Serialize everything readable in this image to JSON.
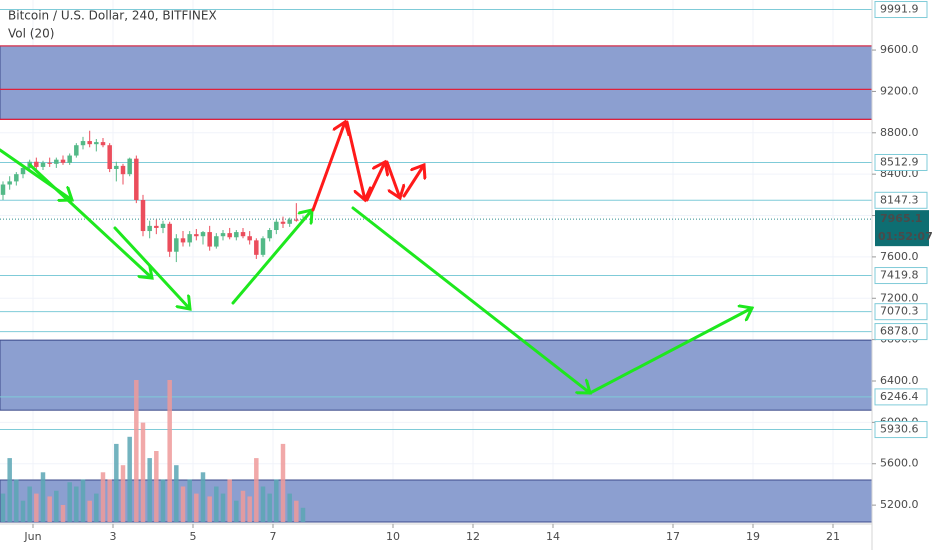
{
  "chart_data": {
    "type": "candlestick",
    "title": "Bitcoin / U.S. Dollar, 240, BITFINEX",
    "volume_title": "Vol (20)",
    "xlim": [
      0.175,
      21.975
    ],
    "xticks": [
      {
        "value": 1,
        "label": "Jun"
      },
      3,
      5,
      7,
      10,
      12,
      14,
      17,
      19,
      21
    ],
    "ylim": [
      4766,
      10084
    ],
    "yticks": [
      {
        "value": 9600,
        "label": "9600.0"
      },
      {
        "value": 9200,
        "label": "9200.0"
      },
      {
        "value": 8800,
        "label": "8800.0"
      },
      {
        "value": 8400,
        "label": "8400.0"
      },
      {
        "value": 8000,
        "label": "8000.0"
      },
      {
        "value": 7600,
        "label": "7600.0"
      },
      {
        "value": 7200,
        "label": "7200.0"
      },
      {
        "value": 6800,
        "label": "6800.0"
      },
      {
        "value": 6400,
        "label": "6400.0"
      },
      {
        "value": 6000,
        "label": "6000.0"
      },
      {
        "value": 5600,
        "label": "5600.0"
      },
      {
        "value": 5200,
        "label": "5200.0"
      }
    ],
    "grid": true,
    "up_color": "#53b987",
    "down_color": "#eb4d5c",
    "volume_up_color": "#5aa6b4",
    "volume_down_color": "#ef9a9a",
    "vlim": [
      0,
      100
    ],
    "x": [
      0.25,
      0.417,
      0.583,
      0.75,
      0.917,
      1.083,
      1.25,
      1.417,
      1.583,
      1.75,
      1.917,
      2.083,
      2.25,
      2.417,
      2.583,
      2.75,
      2.917,
      3.083,
      3.25,
      3.417,
      3.583,
      3.75,
      3.917,
      4.083,
      4.25,
      4.417,
      4.583,
      4.75,
      4.917,
      5.083,
      5.25,
      5.417,
      5.583,
      5.75,
      5.917,
      6.083,
      6.25,
      6.417,
      6.583,
      6.75,
      6.917,
      7.083,
      7.25,
      7.417,
      7.583,
      7.75
    ],
    "candles": [
      [
        8200,
        8330,
        8150,
        8300
      ],
      [
        8300,
        8380,
        8250,
        8330
      ],
      [
        8330,
        8420,
        8290,
        8400
      ],
      [
        8400,
        8480,
        8360,
        8460
      ],
      [
        8460,
        8540,
        8420,
        8520
      ],
      [
        8520,
        8560,
        8440,
        8470
      ],
      [
        8470,
        8530,
        8440,
        8510
      ],
      [
        8510,
        8560,
        8470,
        8500
      ],
      [
        8500,
        8560,
        8460,
        8540
      ],
      [
        8540,
        8580,
        8490,
        8510
      ],
      [
        8510,
        8600,
        8490,
        8580
      ],
      [
        8580,
        8700,
        8560,
        8680
      ],
      [
        8680,
        8760,
        8640,
        8720
      ],
      [
        8720,
        8820,
        8660,
        8690
      ],
      [
        8690,
        8740,
        8620,
        8710
      ],
      [
        8710,
        8750,
        8660,
        8680
      ],
      [
        8680,
        8700,
        8420,
        8450
      ],
      [
        8450,
        8520,
        8330,
        8480
      ],
      [
        8480,
        8500,
        8300,
        8400
      ],
      [
        8400,
        8560,
        8380,
        8550
      ],
      [
        8550,
        8580,
        8120,
        8150
      ],
      [
        8150,
        8200,
        7800,
        7850
      ],
      [
        7850,
        7950,
        7780,
        7900
      ],
      [
        7900,
        7960,
        7820,
        7880
      ],
      [
        7880,
        7950,
        7830,
        7920
      ],
      [
        7920,
        7940,
        7600,
        7650
      ],
      [
        7650,
        7820,
        7550,
        7780
      ],
      [
        7780,
        7850,
        7700,
        7740
      ],
      [
        7740,
        7850,
        7700,
        7820
      ],
      [
        7820,
        7870,
        7760,
        7800
      ],
      [
        7800,
        7850,
        7720,
        7840
      ],
      [
        7840,
        7900,
        7660,
        7700
      ],
      [
        7700,
        7830,
        7680,
        7800
      ],
      [
        7800,
        7860,
        7760,
        7830
      ],
      [
        7830,
        7880,
        7770,
        7790
      ],
      [
        7790,
        7860,
        7760,
        7840
      ],
      [
        7840,
        7880,
        7780,
        7800
      ],
      [
        7800,
        7850,
        7720,
        7760
      ],
      [
        7760,
        7780,
        7580,
        7620
      ],
      [
        7620,
        7800,
        7600,
        7780
      ],
      [
        7780,
        7880,
        7750,
        7860
      ],
      [
        7860,
        7960,
        7820,
        7940
      ],
      [
        7940,
        7990,
        7880,
        7920
      ],
      [
        7920,
        7980,
        7890,
        7960
      ],
      [
        7960,
        8120,
        7940,
        7950
      ],
      [
        7950,
        8000,
        7930,
        7965.1
      ]
    ],
    "volume": [
      20,
      45,
      30,
      15,
      25,
      20,
      35,
      18,
      22,
      12,
      28,
      25,
      30,
      15,
      20,
      35,
      30,
      55,
      40,
      60,
      100,
      70,
      45,
      50,
      30,
      100,
      40,
      25,
      30,
      20,
      35,
      18,
      25,
      20,
      30,
      15,
      22,
      18,
      45,
      25,
      20,
      30,
      55,
      20,
      15,
      10
    ],
    "zones": [
      [
        8930,
        9640
      ],
      [
        6118,
        6795
      ]
    ],
    "zone_color": "#8c9fd0",
    "red_lines": [
      9640,
      9220,
      8930
    ],
    "price_lines": [
      9991.9,
      8512.9,
      8147.3,
      7419.8,
      7070.3,
      {
        "value": 6878,
        "label": "6878.0"
      },
      6246.4,
      5930.6
    ],
    "last_price": 7965.1,
    "countdown": "01:52:07"
  }
}
